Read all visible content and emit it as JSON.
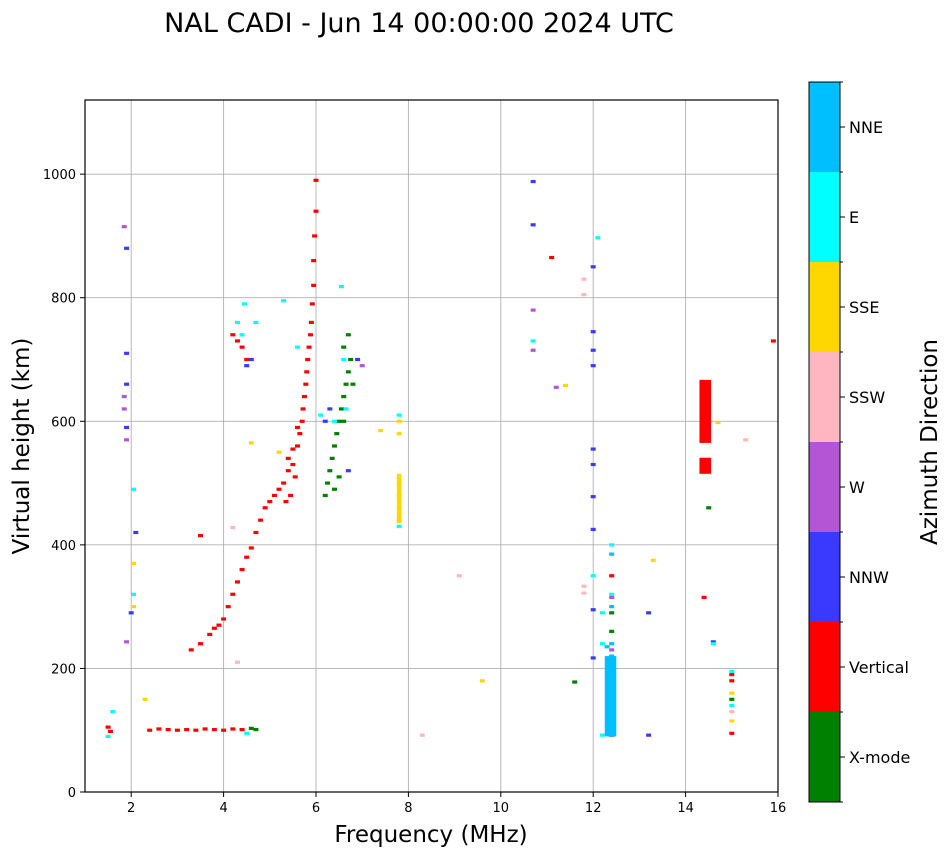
{
  "chart_data": {
    "type": "scatter",
    "title": "NAL CADI - Jun 14 00:00:00 2024 UTC",
    "xlabel": "Frequency (MHz)",
    "ylabel": "Virtual height (km)",
    "xlim": [
      1,
      16
    ],
    "ylim": [
      0,
      1120
    ],
    "xticks": [
      2,
      4,
      6,
      8,
      10,
      12,
      14,
      16
    ],
    "yticks": [
      0,
      200,
      400,
      600,
      800,
      1000
    ],
    "grid": true,
    "colorbar": {
      "label": "Azimuth Direction",
      "entries": [
        {
          "name": "X-mode",
          "color": "#008000"
        },
        {
          "name": "Vertical",
          "color": "#ff0000"
        },
        {
          "name": "NNW",
          "color": "#3a3aff"
        },
        {
          "name": "W",
          "color": "#b455d6"
        },
        {
          "name": "SSW",
          "color": "#ffb6c1"
        },
        {
          "name": "SSE",
          "color": "#ffd700"
        },
        {
          "name": "E",
          "color": "#00ffff"
        },
        {
          "name": "NNE",
          "color": "#00bfff"
        }
      ]
    },
    "series": [
      {
        "name": "Vertical",
        "points": [
          [
            1.5,
            105
          ],
          [
            1.55,
            98
          ],
          [
            2.4,
            100
          ],
          [
            2.6,
            102
          ],
          [
            2.8,
            101
          ],
          [
            3.0,
            100
          ],
          [
            3.2,
            101
          ],
          [
            3.4,
            100
          ],
          [
            3.6,
            102
          ],
          [
            3.8,
            101
          ],
          [
            4.0,
            100
          ],
          [
            4.2,
            102
          ],
          [
            4.4,
            101
          ],
          [
            3.3,
            230
          ],
          [
            3.5,
            240
          ],
          [
            3.7,
            255
          ],
          [
            3.8,
            265
          ],
          [
            3.9,
            270
          ],
          [
            4.0,
            280
          ],
          [
            4.1,
            300
          ],
          [
            4.2,
            320
          ],
          [
            4.3,
            340
          ],
          [
            4.4,
            360
          ],
          [
            4.5,
            380
          ],
          [
            4.6,
            395
          ],
          [
            4.7,
            420
          ],
          [
            4.8,
            440
          ],
          [
            4.9,
            460
          ],
          [
            5.0,
            470
          ],
          [
            5.1,
            480
          ],
          [
            5.2,
            490
          ],
          [
            5.3,
            500
          ],
          [
            5.35,
            470
          ],
          [
            5.4,
            520
          ],
          [
            5.45,
            480
          ],
          [
            5.5,
            530
          ],
          [
            5.55,
            510
          ],
          [
            5.6,
            560
          ],
          [
            5.65,
            580
          ],
          [
            5.7,
            600
          ],
          [
            5.72,
            620
          ],
          [
            5.75,
            640
          ],
          [
            5.78,
            660
          ],
          [
            5.8,
            680
          ],
          [
            5.82,
            700
          ],
          [
            5.85,
            720
          ],
          [
            5.88,
            740
          ],
          [
            5.9,
            760
          ],
          [
            5.92,
            790
          ],
          [
            5.95,
            820
          ],
          [
            5.95,
            860
          ],
          [
            5.97,
            900
          ],
          [
            6.0,
            940
          ],
          [
            6.0,
            990
          ],
          [
            4.2,
            740
          ],
          [
            4.3,
            730
          ],
          [
            4.4,
            720
          ],
          [
            4.5,
            700
          ],
          [
            3.5,
            415
          ],
          [
            5.4,
            540
          ],
          [
            5.5,
            555
          ],
          [
            5.6,
            590
          ],
          [
            11.1,
            865
          ],
          [
            14.4,
            315
          ],
          [
            14.4,
            610
          ],
          [
            14.4,
            580
          ],
          [
            14.4,
            640
          ],
          [
            14.4,
            528
          ],
          [
            12.4,
            350
          ],
          [
            12.4,
            210
          ],
          [
            15.0,
            190
          ],
          [
            15.0,
            95
          ],
          [
            15.0,
            180
          ],
          [
            15.9,
            730
          ]
        ]
      },
      {
        "name": "X-mode",
        "points": [
          [
            4.6,
            103
          ],
          [
            4.7,
            101
          ],
          [
            6.2,
            480
          ],
          [
            6.25,
            500
          ],
          [
            6.3,
            520
          ],
          [
            6.35,
            540
          ],
          [
            6.4,
            560
          ],
          [
            6.45,
            580
          ],
          [
            6.5,
            600
          ],
          [
            6.55,
            620
          ],
          [
            6.6,
            640
          ],
          [
            6.65,
            660
          ],
          [
            6.7,
            680
          ],
          [
            6.75,
            700
          ],
          [
            6.7,
            740
          ],
          [
            6.6,
            720
          ],
          [
            6.8,
            660
          ],
          [
            6.4,
            490
          ],
          [
            6.5,
            510
          ],
          [
            6.6,
            600
          ],
          [
            14.5,
            460
          ],
          [
            11.6,
            178
          ],
          [
            12.4,
            260
          ],
          [
            12.4,
            290
          ],
          [
            15.0,
            150
          ]
        ]
      },
      {
        "name": "NNW",
        "points": [
          [
            1.9,
            880
          ],
          [
            1.9,
            710
          ],
          [
            1.9,
            660
          ],
          [
            1.9,
            590
          ],
          [
            2.1,
            420
          ],
          [
            2.0,
            290
          ],
          [
            4.5,
            690
          ],
          [
            4.6,
            700
          ],
          [
            6.2,
            600
          ],
          [
            6.3,
            620
          ],
          [
            6.7,
            520
          ],
          [
            6.9,
            700
          ],
          [
            10.7,
            988
          ],
          [
            10.7,
            918
          ],
          [
            12.0,
            850
          ],
          [
            12.0,
            745
          ],
          [
            12.0,
            715
          ],
          [
            12.0,
            690
          ],
          [
            12.0,
            555
          ],
          [
            12.0,
            530
          ],
          [
            12.0,
            478
          ],
          [
            12.0,
            425
          ],
          [
            12.0,
            295
          ],
          [
            12.0,
            217
          ],
          [
            13.2,
            290
          ],
          [
            13.2,
            92
          ],
          [
            14.6,
            243
          ],
          [
            12.4,
            92
          ]
        ]
      },
      {
        "name": "W",
        "points": [
          [
            1.85,
            915
          ],
          [
            1.85,
            640
          ],
          [
            1.85,
            620
          ],
          [
            1.9,
            570
          ],
          [
            1.9,
            243
          ],
          [
            10.7,
            780
          ],
          [
            10.7,
            715
          ],
          [
            11.2,
            655
          ],
          [
            7.0,
            690
          ],
          [
            12.4,
            315
          ],
          [
            12.4,
            200
          ],
          [
            12.4,
            230
          ]
        ]
      },
      {
        "name": "SSW",
        "points": [
          [
            4.2,
            428
          ],
          [
            4.3,
            210
          ],
          [
            8.3,
            92
          ],
          [
            9.1,
            350
          ],
          [
            11.8,
            805
          ],
          [
            11.8,
            830
          ],
          [
            11.8,
            333
          ],
          [
            11.8,
            322
          ],
          [
            15.3,
            570
          ],
          [
            7.8,
            440
          ],
          [
            15.0,
            130
          ]
        ]
      },
      {
        "name": "SSE",
        "points": [
          [
            2.05,
            370
          ],
          [
            2.05,
            300
          ],
          [
            2.3,
            150
          ],
          [
            4.6,
            565
          ],
          [
            5.2,
            550
          ],
          [
            7.4,
            585
          ],
          [
            7.8,
            600
          ],
          [
            7.8,
            580
          ],
          [
            7.8,
            500
          ],
          [
            7.8,
            480
          ],
          [
            7.8,
            460
          ],
          [
            11.4,
            658
          ],
          [
            13.3,
            375
          ],
          [
            9.6,
            180
          ],
          [
            14.7,
            598
          ],
          [
            15.0,
            160
          ],
          [
            15.0,
            115
          ]
        ]
      },
      {
        "name": "E",
        "points": [
          [
            1.6,
            130
          ],
          [
            1.5,
            90
          ],
          [
            2.05,
            320
          ],
          [
            2.05,
            490
          ],
          [
            4.45,
            790
          ],
          [
            4.3,
            760
          ],
          [
            4.4,
            740
          ],
          [
            4.7,
            760
          ],
          [
            5.3,
            795
          ],
          [
            5.6,
            720
          ],
          [
            6.1,
            610
          ],
          [
            6.4,
            600
          ],
          [
            6.6,
            700
          ],
          [
            6.65,
            620
          ],
          [
            6.55,
            818
          ],
          [
            4.5,
            95
          ],
          [
            7.8,
            430
          ],
          [
            7.8,
            610
          ],
          [
            10.7,
            730
          ],
          [
            12.1,
            897
          ],
          [
            12.0,
            350
          ],
          [
            12.2,
            290
          ],
          [
            12.2,
            240
          ],
          [
            12.4,
            320
          ],
          [
            12.4,
            400
          ],
          [
            14.6,
            240
          ],
          [
            12.2,
            92
          ],
          [
            15.0,
            195
          ],
          [
            15.0,
            140
          ]
        ]
      },
      {
        "name": "NNE",
        "points": [
          [
            12.4,
            100
          ],
          [
            12.4,
            120
          ],
          [
            12.4,
            140
          ],
          [
            12.4,
            160
          ],
          [
            12.4,
            180
          ],
          [
            12.4,
            200
          ],
          [
            12.4,
            220
          ],
          [
            12.4,
            240
          ],
          [
            12.4,
            300
          ],
          [
            12.4,
            385
          ],
          [
            12.3,
            235
          ]
        ]
      }
    ],
    "blocks": [
      {
        "series": "Vertical",
        "x": [
          14.3,
          14.55
        ],
        "y": [
          565,
          667
        ]
      },
      {
        "series": "Vertical",
        "x": [
          14.3,
          14.55
        ],
        "y": [
          515,
          541
        ]
      },
      {
        "series": "NNE",
        "x": [
          12.25,
          12.5
        ],
        "y": [
          90,
          220
        ]
      },
      {
        "series": "SSE",
        "x": [
          7.75,
          7.85
        ],
        "y": [
          435,
          515
        ]
      }
    ]
  }
}
